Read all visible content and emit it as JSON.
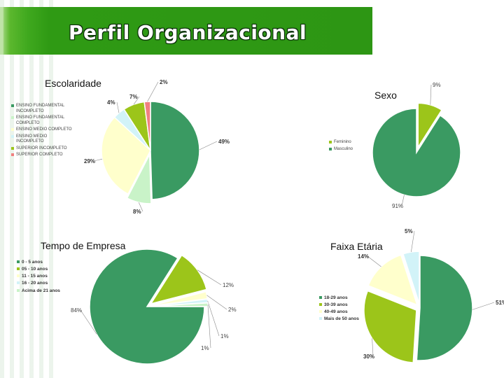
{
  "title": "Perfil Organizacional",
  "colors": {
    "dark_green": "#3a9a62",
    "lime": "#9cc51a",
    "light_green": "#c9f3c8",
    "light_yellow": "#ffffcc",
    "light_cyan": "#d2f3f8",
    "pink": "#f08080"
  },
  "chart_data": [
    {
      "type": "pie",
      "title": "Escolaridade",
      "categories": [
        "ENSINO FUNDAMENTAL INCOMPLETO",
        "ENSINO FUNDAMENTAL COMPLETO",
        "ENSINO MEDIO COMPLETO",
        "ENSINO MEDIO INCOMPLETO",
        "SUPERIOR INCOMPLETO",
        "SUPERIOR COMPLETO"
      ],
      "values": [
        49,
        8,
        29,
        4,
        7,
        2
      ],
      "labels": [
        "49%",
        "8%",
        "29%",
        "4%",
        "7%",
        "2%"
      ],
      "colors": [
        "#3a9a62",
        "#c9f3c8",
        "#ffffcc",
        "#d2f3f8",
        "#9cc51a",
        "#f08080"
      ],
      "legend": "left"
    },
    {
      "type": "pie",
      "title": "Sexo",
      "categories": [
        "Feminino",
        "Masculino"
      ],
      "values": [
        9,
        91
      ],
      "labels": [
        "9%",
        "91%"
      ],
      "colors": [
        "#9cc51a",
        "#3a9a62"
      ],
      "legend": "left"
    },
    {
      "type": "pie",
      "title": "Tempo de Empresa",
      "categories": [
        "0 - 5 anos",
        "05 - 10 anos",
        "11 - 15 anos",
        "16 - 20 anos",
        "Acima de 21 anos"
      ],
      "values": [
        84,
        12,
        2,
        1,
        1
      ],
      "labels": [
        "84%",
        "12%",
        "2%",
        "1%",
        "1%"
      ],
      "colors": [
        "#3a9a62",
        "#9cc51a",
        "#ffffcc",
        "#d2f3f8",
        "#c9f3c8"
      ],
      "legend": "left"
    },
    {
      "type": "pie",
      "title": "Faixa Etária",
      "categories": [
        "18-29 anos",
        "30-39 anos",
        "40-49 anos",
        "Mais de 50 anos"
      ],
      "values": [
        51,
        30,
        14,
        5
      ],
      "labels": [
        "51%",
        "30%",
        "14%",
        "5%"
      ],
      "colors": [
        "#3a9a62",
        "#9cc51a",
        "#ffffcc",
        "#d2f3f8"
      ],
      "legend": "left"
    }
  ]
}
